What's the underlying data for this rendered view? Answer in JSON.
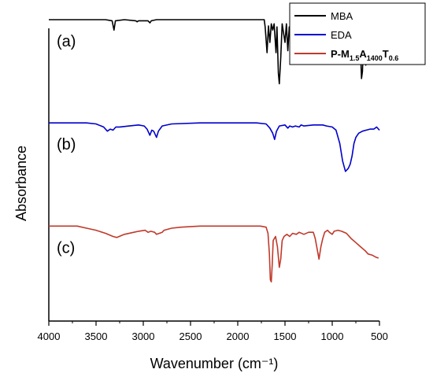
{
  "chart_data": {
    "type": "line",
    "xlabel": "Wavenumber (cm⁻¹)",
    "ylabel": "Absorbance",
    "xlim": [
      4000,
      500
    ],
    "x_reversed": true,
    "x_ticks": [
      "4000",
      "3500",
      "3000",
      "2500",
      "2000",
      "1500",
      "1000",
      "500"
    ],
    "grid": false,
    "y_tick_labels": false,
    "legend_position": "top-right",
    "series": [
      {
        "name": "MBA",
        "label": "(a)",
        "color": "#000000",
        "offset": 2.0,
        "baseline": 0.92,
        "points": [
          [
            4000,
            0.92
          ],
          [
            3500,
            0.92
          ],
          [
            3400,
            0.92
          ],
          [
            3330,
            0.91
          ],
          [
            3310,
            0.82
          ],
          [
            3295,
            0.91
          ],
          [
            3200,
            0.92
          ],
          [
            3080,
            0.91
          ],
          [
            3065,
            0.9
          ],
          [
            3050,
            0.91
          ],
          [
            2950,
            0.91
          ],
          [
            2930,
            0.89
          ],
          [
            2915,
            0.91
          ],
          [
            2860,
            0.92
          ],
          [
            2000,
            0.92
          ],
          [
            1720,
            0.92
          ],
          [
            1710,
            0.85
          ],
          [
            1690,
            0.6
          ],
          [
            1675,
            0.86
          ],
          [
            1660,
            0.7
          ],
          [
            1645,
            0.88
          ],
          [
            1630,
            0.82
          ],
          [
            1615,
            0.88
          ],
          [
            1595,
            0.6
          ],
          [
            1585,
            0.85
          ],
          [
            1570,
            0.4
          ],
          [
            1560,
            0.3
          ],
          [
            1545,
            0.55
          ],
          [
            1530,
            0.88
          ],
          [
            1500,
            0.7
          ],
          [
            1485,
            0.88
          ],
          [
            1470,
            0.62
          ],
          [
            1455,
            0.85
          ],
          [
            1435,
            0.6
          ],
          [
            1420,
            0.85
          ],
          [
            1400,
            0.58
          ],
          [
            1385,
            0.88
          ],
          [
            1365,
            0.72
          ],
          [
            1350,
            0.88
          ],
          [
            1330,
            0.68
          ],
          [
            1315,
            0.85
          ],
          [
            1300,
            0.86
          ],
          [
            1280,
            0.65
          ],
          [
            1265,
            0.87
          ],
          [
            1250,
            0.88
          ],
          [
            1230,
            0.55
          ],
          [
            1215,
            0.86
          ],
          [
            1195,
            0.72
          ],
          [
            1180,
            0.88
          ],
          [
            1160,
            0.86
          ],
          [
            1140,
            0.5
          ],
          [
            1125,
            0.85
          ],
          [
            1100,
            0.88
          ],
          [
            1080,
            0.62
          ],
          [
            1065,
            0.87
          ],
          [
            1040,
            0.88
          ],
          [
            1020,
            0.55
          ],
          [
            1005,
            0.86
          ],
          [
            990,
            0.88
          ],
          [
            960,
            0.62
          ],
          [
            945,
            0.86
          ],
          [
            920,
            0.88
          ],
          [
            905,
            0.58
          ],
          [
            890,
            0.86
          ],
          [
            860,
            0.88
          ],
          [
            830,
            0.65
          ],
          [
            815,
            0.88
          ],
          [
            790,
            0.89
          ],
          [
            760,
            0.86
          ],
          [
            745,
            0.89
          ],
          [
            720,
            0.86
          ],
          [
            700,
            0.6
          ],
          [
            690,
            0.35
          ],
          [
            680,
            0.42
          ],
          [
            670,
            0.7
          ],
          [
            655,
            0.6
          ],
          [
            645,
            0.48
          ],
          [
            630,
            0.78
          ],
          [
            610,
            0.86
          ],
          [
            590,
            0.88
          ],
          [
            560,
            0.89
          ],
          [
            540,
            0.9
          ],
          [
            520,
            0.91
          ],
          [
            510,
            0.91
          ]
        ]
      },
      {
        "name": "EDA",
        "label": "(b)",
        "color": "#0000cc",
        "offset": 1.0,
        "baseline": 0.92,
        "points": [
          [
            4000,
            0.92
          ],
          [
            3600,
            0.92
          ],
          [
            3500,
            0.91
          ],
          [
            3420,
            0.88
          ],
          [
            3380,
            0.84
          ],
          [
            3350,
            0.86
          ],
          [
            3320,
            0.85
          ],
          [
            3290,
            0.88
          ],
          [
            3250,
            0.88
          ],
          [
            3150,
            0.89
          ],
          [
            3050,
            0.9
          ],
          [
            2990,
            0.89
          ],
          [
            2960,
            0.86
          ],
          [
            2930,
            0.8
          ],
          [
            2910,
            0.85
          ],
          [
            2890,
            0.84
          ],
          [
            2860,
            0.78
          ],
          [
            2840,
            0.84
          ],
          [
            2800,
            0.89
          ],
          [
            2700,
            0.91
          ],
          [
            2400,
            0.92
          ],
          [
            1800,
            0.92
          ],
          [
            1700,
            0.91
          ],
          [
            1660,
            0.87
          ],
          [
            1630,
            0.82
          ],
          [
            1610,
            0.76
          ],
          [
            1590,
            0.84
          ],
          [
            1560,
            0.89
          ],
          [
            1500,
            0.9
          ],
          [
            1470,
            0.87
          ],
          [
            1450,
            0.89
          ],
          [
            1420,
            0.88
          ],
          [
            1390,
            0.89
          ],
          [
            1350,
            0.88
          ],
          [
            1330,
            0.9
          ],
          [
            1300,
            0.89
          ],
          [
            1200,
            0.9
          ],
          [
            1100,
            0.9
          ],
          [
            1060,
            0.89
          ],
          [
            1000,
            0.88
          ],
          [
            960,
            0.85
          ],
          [
            920,
            0.72
          ],
          [
            890,
            0.55
          ],
          [
            860,
            0.45
          ],
          [
            830,
            0.48
          ],
          [
            810,
            0.52
          ],
          [
            790,
            0.6
          ],
          [
            770,
            0.72
          ],
          [
            750,
            0.78
          ],
          [
            720,
            0.82
          ],
          [
            680,
            0.84
          ],
          [
            640,
            0.85
          ],
          [
            600,
            0.86
          ],
          [
            560,
            0.86
          ],
          [
            530,
            0.88
          ],
          [
            510,
            0.86
          ],
          [
            500,
            0.85
          ]
        ]
      },
      {
        "name": "P-M1.5A1400T0.6",
        "label": "(c)",
        "color": "#c0392b",
        "offset": 0.0,
        "baseline": 0.92,
        "points": [
          [
            4000,
            0.92
          ],
          [
            3700,
            0.92
          ],
          [
            3600,
            0.9
          ],
          [
            3500,
            0.88
          ],
          [
            3400,
            0.85
          ],
          [
            3320,
            0.82
          ],
          [
            3280,
            0.81
          ],
          [
            3200,
            0.84
          ],
          [
            3100,
            0.86
          ],
          [
            3050,
            0.87
          ],
          [
            2980,
            0.88
          ],
          [
            2950,
            0.86
          ],
          [
            2920,
            0.87
          ],
          [
            2880,
            0.86
          ],
          [
            2860,
            0.84
          ],
          [
            2830,
            0.85
          ],
          [
            2800,
            0.86
          ],
          [
            2780,
            0.88
          ],
          [
            2700,
            0.9
          ],
          [
            2600,
            0.91
          ],
          [
            2400,
            0.92
          ],
          [
            2000,
            0.92
          ],
          [
            1760,
            0.92
          ],
          [
            1700,
            0.91
          ],
          [
            1680,
            0.85
          ],
          [
            1665,
            0.65
          ],
          [
            1655,
            0.4
          ],
          [
            1645,
            0.38
          ],
          [
            1635,
            0.55
          ],
          [
            1625,
            0.78
          ],
          [
            1600,
            0.82
          ],
          [
            1580,
            0.72
          ],
          [
            1560,
            0.52
          ],
          [
            1545,
            0.6
          ],
          [
            1530,
            0.78
          ],
          [
            1510,
            0.82
          ],
          [
            1480,
            0.84
          ],
          [
            1450,
            0.82
          ],
          [
            1420,
            0.85
          ],
          [
            1380,
            0.84
          ],
          [
            1350,
            0.86
          ],
          [
            1300,
            0.84
          ],
          [
            1250,
            0.86
          ],
          [
            1200,
            0.86
          ],
          [
            1180,
            0.8
          ],
          [
            1160,
            0.7
          ],
          [
            1140,
            0.6
          ],
          [
            1120,
            0.72
          ],
          [
            1100,
            0.8
          ],
          [
            1080,
            0.86
          ],
          [
            1050,
            0.88
          ],
          [
            1030,
            0.86
          ],
          [
            1000,
            0.84
          ],
          [
            980,
            0.87
          ],
          [
            940,
            0.88
          ],
          [
            900,
            0.87
          ],
          [
            850,
            0.85
          ],
          [
            800,
            0.8
          ],
          [
            750,
            0.76
          ],
          [
            700,
            0.72
          ],
          [
            650,
            0.68
          ],
          [
            620,
            0.65
          ],
          [
            580,
            0.64
          ],
          [
            540,
            0.62
          ],
          [
            510,
            0.61
          ]
        ]
      }
    ]
  }
}
